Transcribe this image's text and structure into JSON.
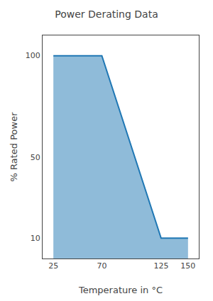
{
  "chart_data": {
    "type": "area",
    "title": "Power Derating Data",
    "x": [
      25,
      70,
      125,
      150
    ],
    "values": [
      100,
      100,
      10,
      10
    ],
    "x_label": "Temperature in °C",
    "y_label": "% Rated Power",
    "xlim": [
      15,
      160
    ],
    "xticks": [
      25,
      70,
      125,
      150
    ],
    "ylim": [
      0,
      110
    ],
    "yticks": [
      10,
      50,
      100
    ],
    "grid": false
  }
}
